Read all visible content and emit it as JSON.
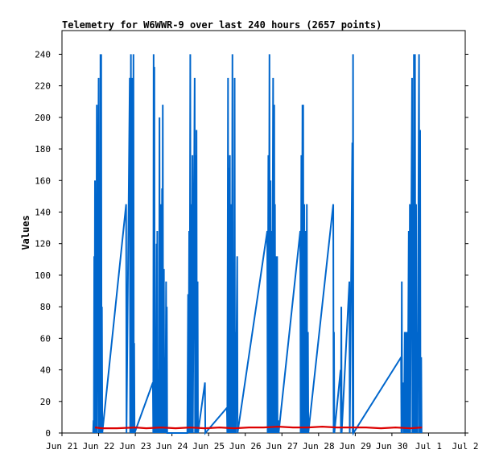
{
  "chart_data": {
    "type": "line",
    "title": "Telemetry for W6WWR-9 over last 240 hours (2657 points)",
    "xlabel": "",
    "ylabel": "Values",
    "x_ticks": [
      "Jun 21",
      "Jun 22",
      "Jun 23",
      "Jun 24",
      "Jun 25",
      "Jun 26",
      "Jun 27",
      "Jun 28",
      "Jun 29",
      "Jun 30",
      "Jul 1",
      "Jul 2"
    ],
    "y_ticks": [
      0,
      20,
      40,
      60,
      80,
      100,
      120,
      140,
      160,
      180,
      200,
      220,
      240
    ],
    "ylim": [
      0,
      255
    ],
    "x_range_days": [
      0,
      11
    ],
    "grid": false,
    "legend": "none",
    "colors": {
      "blue_series": "#0066cc",
      "red_series": "#dd0000",
      "frame": "#000000"
    },
    "series": [
      {
        "color": "#0066cc",
        "points": [
          [
            0.85,
            0
          ],
          [
            0.86,
            8
          ],
          [
            0.87,
            0
          ],
          [
            0.88,
            112
          ],
          [
            0.89,
            0
          ],
          [
            0.9,
            160
          ],
          [
            0.91,
            0
          ],
          [
            0.92,
            145
          ],
          [
            0.93,
            0
          ],
          [
            0.95,
            208
          ],
          [
            0.96,
            0
          ],
          [
            1.0,
            225
          ],
          [
            1.01,
            0
          ],
          [
            1.03,
            18
          ],
          [
            1.04,
            0
          ],
          [
            1.05,
            240
          ],
          [
            1.06,
            0
          ],
          [
            1.07,
            240
          ],
          [
            1.08,
            0
          ],
          [
            1.09,
            80
          ],
          [
            1.1,
            0
          ],
          [
            1.75,
            145
          ],
          [
            1.76,
            0
          ],
          [
            1.85,
            225
          ],
          [
            1.86,
            0
          ],
          [
            1.88,
            240
          ],
          [
            1.89,
            0
          ],
          [
            1.92,
            225
          ],
          [
            1.93,
            0
          ],
          [
            1.95,
            240
          ],
          [
            1.96,
            0
          ],
          [
            1.97,
            57
          ],
          [
            1.98,
            0
          ],
          [
            2.48,
            32
          ],
          [
            2.49,
            0
          ],
          [
            2.5,
            240
          ],
          [
            2.51,
            0
          ],
          [
            2.52,
            232
          ],
          [
            2.53,
            0
          ],
          [
            2.55,
            48
          ],
          [
            2.56,
            0
          ],
          [
            2.58,
            120
          ],
          [
            2.59,
            0
          ],
          [
            2.6,
            128
          ],
          [
            2.61,
            0
          ],
          [
            2.64,
            40
          ],
          [
            2.65,
            0
          ],
          [
            2.66,
            200
          ],
          [
            2.67,
            0
          ],
          [
            2.68,
            48
          ],
          [
            2.69,
            0
          ],
          [
            2.7,
            145
          ],
          [
            2.71,
            0
          ],
          [
            2.73,
            155
          ],
          [
            2.74,
            0
          ],
          [
            2.75,
            208
          ],
          [
            2.76,
            0
          ],
          [
            2.78,
            104
          ],
          [
            2.79,
            0
          ],
          [
            2.81,
            48
          ],
          [
            2.82,
            0
          ],
          [
            2.84,
            96
          ],
          [
            2.85,
            0
          ],
          [
            2.86,
            80
          ],
          [
            2.87,
            0
          ],
          [
            3.42,
            0
          ],
          [
            3.44,
            88
          ],
          [
            3.45,
            0
          ],
          [
            3.47,
            128
          ],
          [
            3.48,
            0
          ],
          [
            3.5,
            240
          ],
          [
            3.51,
            0
          ],
          [
            3.53,
            145
          ],
          [
            3.54,
            0
          ],
          [
            3.56,
            176
          ],
          [
            3.57,
            0
          ],
          [
            3.62,
            225
          ],
          [
            3.63,
            0
          ],
          [
            3.65,
            176
          ],
          [
            3.66,
            0
          ],
          [
            3.67,
            192
          ],
          [
            3.68,
            0
          ],
          [
            3.7,
            96
          ],
          [
            3.71,
            0
          ],
          [
            3.9,
            32
          ],
          [
            3.91,
            0
          ],
          [
            4.5,
            16
          ],
          [
            4.51,
            0
          ],
          [
            4.53,
            225
          ],
          [
            4.54,
            0
          ],
          [
            4.55,
            168
          ],
          [
            4.56,
            0
          ],
          [
            4.58,
            176
          ],
          [
            4.59,
            0
          ],
          [
            4.62,
            145
          ],
          [
            4.63,
            0
          ],
          [
            4.65,
            240
          ],
          [
            4.66,
            0
          ],
          [
            4.68,
            56
          ],
          [
            4.69,
            0
          ],
          [
            4.71,
            225
          ],
          [
            4.72,
            0
          ],
          [
            4.73,
            64
          ],
          [
            4.74,
            0
          ],
          [
            4.78,
            112
          ],
          [
            4.79,
            0
          ],
          [
            5.6,
            128
          ],
          [
            5.61,
            0
          ],
          [
            5.63,
            176
          ],
          [
            5.64,
            0
          ],
          [
            5.66,
            240
          ],
          [
            5.67,
            0
          ],
          [
            5.69,
            160
          ],
          [
            5.7,
            0
          ],
          [
            5.72,
            128
          ],
          [
            5.73,
            0
          ],
          [
            5.76,
            225
          ],
          [
            5.77,
            0
          ],
          [
            5.79,
            208
          ],
          [
            5.8,
            0
          ],
          [
            5.81,
            145
          ],
          [
            5.82,
            0
          ],
          [
            5.84,
            112
          ],
          [
            5.85,
            0
          ],
          [
            5.87,
            112
          ],
          [
            5.88,
            0
          ],
          [
            5.9,
            8
          ],
          [
            5.91,
            0
          ],
          [
            6.5,
            128
          ],
          [
            6.51,
            0
          ],
          [
            6.53,
            176
          ],
          [
            6.54,
            0
          ],
          [
            6.56,
            208
          ],
          [
            6.57,
            0
          ],
          [
            6.58,
            208
          ],
          [
            6.59,
            0
          ],
          [
            6.61,
            145
          ],
          [
            6.62,
            0
          ],
          [
            6.65,
            128
          ],
          [
            6.66,
            0
          ],
          [
            6.68,
            145
          ],
          [
            6.69,
            0
          ],
          [
            6.71,
            64
          ],
          [
            6.72,
            0
          ],
          [
            7.4,
            145
          ],
          [
            7.41,
            0
          ],
          [
            7.42,
            64
          ],
          [
            7.43,
            0
          ],
          [
            7.6,
            40
          ],
          [
            7.61,
            0
          ],
          [
            7.62,
            80
          ],
          [
            7.63,
            0
          ],
          [
            7.84,
            96
          ],
          [
            7.85,
            0
          ],
          [
            7.92,
            184
          ],
          [
            7.93,
            0
          ],
          [
            7.94,
            240
          ],
          [
            7.95,
            0
          ],
          [
            9.25,
            48
          ],
          [
            9.26,
            0
          ],
          [
            9.27,
            96
          ],
          [
            9.28,
            0
          ],
          [
            9.32,
            32
          ],
          [
            9.33,
            0
          ],
          [
            9.35,
            64
          ],
          [
            9.36,
            0
          ],
          [
            9.39,
            64
          ],
          [
            9.4,
            0
          ],
          [
            9.42,
            64
          ],
          [
            9.43,
            0
          ],
          [
            9.46,
            128
          ],
          [
            9.47,
            0
          ],
          [
            9.49,
            145
          ],
          [
            9.5,
            0
          ],
          [
            9.55,
            225
          ],
          [
            9.56,
            0
          ],
          [
            9.58,
            145
          ],
          [
            9.59,
            0
          ],
          [
            9.6,
            240
          ],
          [
            9.61,
            0
          ],
          [
            9.63,
            240
          ],
          [
            9.64,
            0
          ],
          [
            9.66,
            145
          ],
          [
            9.67,
            0
          ],
          [
            9.69,
            64
          ],
          [
            9.7,
            0
          ],
          [
            9.74,
            240
          ],
          [
            9.75,
            0
          ],
          [
            9.77,
            192
          ],
          [
            9.78,
            0
          ],
          [
            9.8,
            48
          ],
          [
            9.81,
            0
          ]
        ]
      },
      {
        "color": "#dd0000",
        "points": [
          [
            0.9,
            3.5
          ],
          [
            1.1,
            3.0
          ],
          [
            1.5,
            3.0
          ],
          [
            2.0,
            3.5
          ],
          [
            2.3,
            3.0
          ],
          [
            2.7,
            3.5
          ],
          [
            3.1,
            3.0
          ],
          [
            3.5,
            3.5
          ],
          [
            3.9,
            3.0
          ],
          [
            4.3,
            3.5
          ],
          [
            4.7,
            3.0
          ],
          [
            5.1,
            3.5
          ],
          [
            5.5,
            3.5
          ],
          [
            5.9,
            4.0
          ],
          [
            6.3,
            3.5
          ],
          [
            6.7,
            3.5
          ],
          [
            7.1,
            4.0
          ],
          [
            7.5,
            3.5
          ],
          [
            7.9,
            3.5
          ],
          [
            8.3,
            3.5
          ],
          [
            8.7,
            3.0
          ],
          [
            9.1,
            3.5
          ],
          [
            9.5,
            3.0
          ],
          [
            9.82,
            3.5
          ]
        ]
      }
    ]
  }
}
